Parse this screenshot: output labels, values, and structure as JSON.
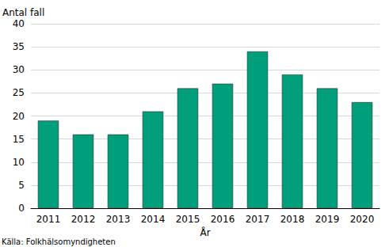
{
  "chart_data": {
    "type": "bar",
    "y_label": "Antal fall",
    "x_label": "År",
    "annotations": [
      "Källa: Folkhälsomyndigheten"
    ],
    "categories": [
      "2011",
      "2012",
      "2013",
      "2014",
      "2015",
      "2016",
      "2017",
      "2018",
      "2019",
      "2020"
    ],
    "values": [
      19,
      16,
      16,
      21,
      26,
      27,
      34,
      29,
      26,
      23
    ],
    "color": "#009e7b",
    "ylim": [
      0,
      40
    ],
    "yticks": [
      0,
      5,
      10,
      15,
      20,
      25,
      30,
      35,
      40
    ],
    "grid": true
  }
}
